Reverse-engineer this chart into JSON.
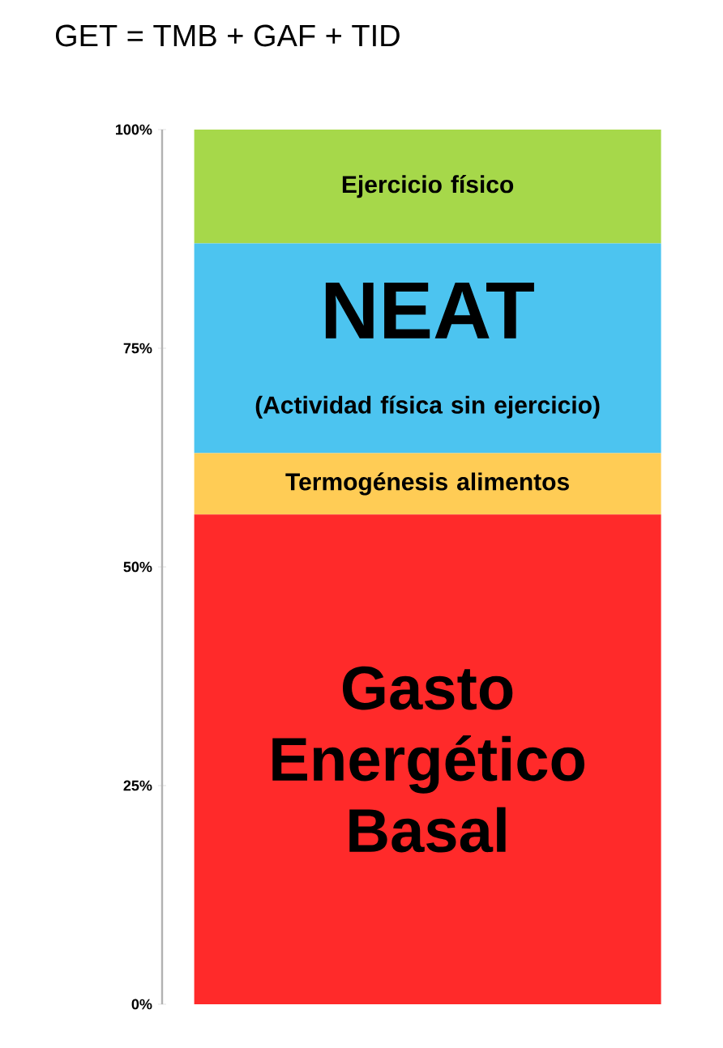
{
  "chart_data": {
    "type": "bar",
    "title": "GET = TMB + GAF + TID",
    "categories": [
      null
    ],
    "stacked": true,
    "series": [
      {
        "name": "Gasto Energético Basal",
        "color": "#ff2a2a",
        "values": [
          56
        ]
      },
      {
        "name": "Termogénesis alimentos",
        "color": "#ffcc55",
        "values": [
          7
        ]
      },
      {
        "name": "NEAT",
        "color": "#4cc4f0",
        "values": [
          24
        ]
      },
      {
        "name": "Ejercicio físico",
        "color": "#a6d84a",
        "values": [
          13
        ]
      }
    ],
    "annotations": [
      "(Actividad física sin ejercicio)"
    ],
    "ylim": [
      0,
      100
    ],
    "yticks": [
      {
        "value": 0,
        "label": "0%"
      },
      {
        "value": 25,
        "label": "25%"
      },
      {
        "value": 50,
        "label": "50%"
      },
      {
        "value": 75,
        "label": "75%"
      },
      {
        "value": 100,
        "label": "100%"
      }
    ]
  }
}
